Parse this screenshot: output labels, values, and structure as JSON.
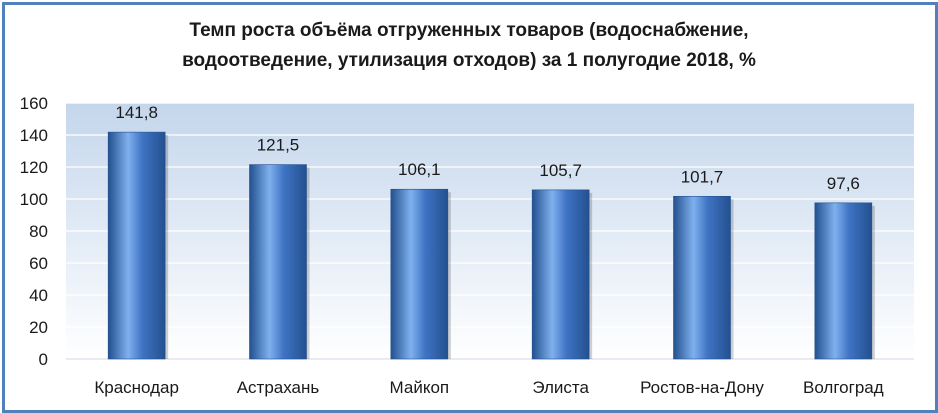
{
  "chart_data": {
    "type": "bar",
    "title_lines": [
      "Темп роста объёма отгруженных товаров (водоснабжение,",
      "водоотведение, утилизация отходов) за 1 полугодие 2018, %"
    ],
    "categories": [
      "Краснодар",
      "Астрахань",
      "Майкоп",
      "Элиста",
      "Ростов-на-Дону",
      "Волгоград"
    ],
    "values": [
      141.8,
      121.5,
      106.1,
      105.7,
      101.7,
      97.6
    ],
    "data_labels": [
      "141,8",
      "121,5",
      "106,1",
      "105,7",
      "101,7",
      "97,6"
    ],
    "y_ticks": [
      "0",
      "20",
      "40",
      "60",
      "80",
      "100",
      "120",
      "140",
      "160"
    ],
    "ylim": [
      0,
      160
    ],
    "grid": true,
    "legend": false,
    "colors": {
      "bar": "#3f74c4",
      "bar_light": "#7fb0ee",
      "bar_dark": "#23508f",
      "frame": "#4f81bd",
      "plot_top": "#c4d6ec",
      "plot_bottom": "#ffffff",
      "grid": "#ffffff"
    }
  }
}
